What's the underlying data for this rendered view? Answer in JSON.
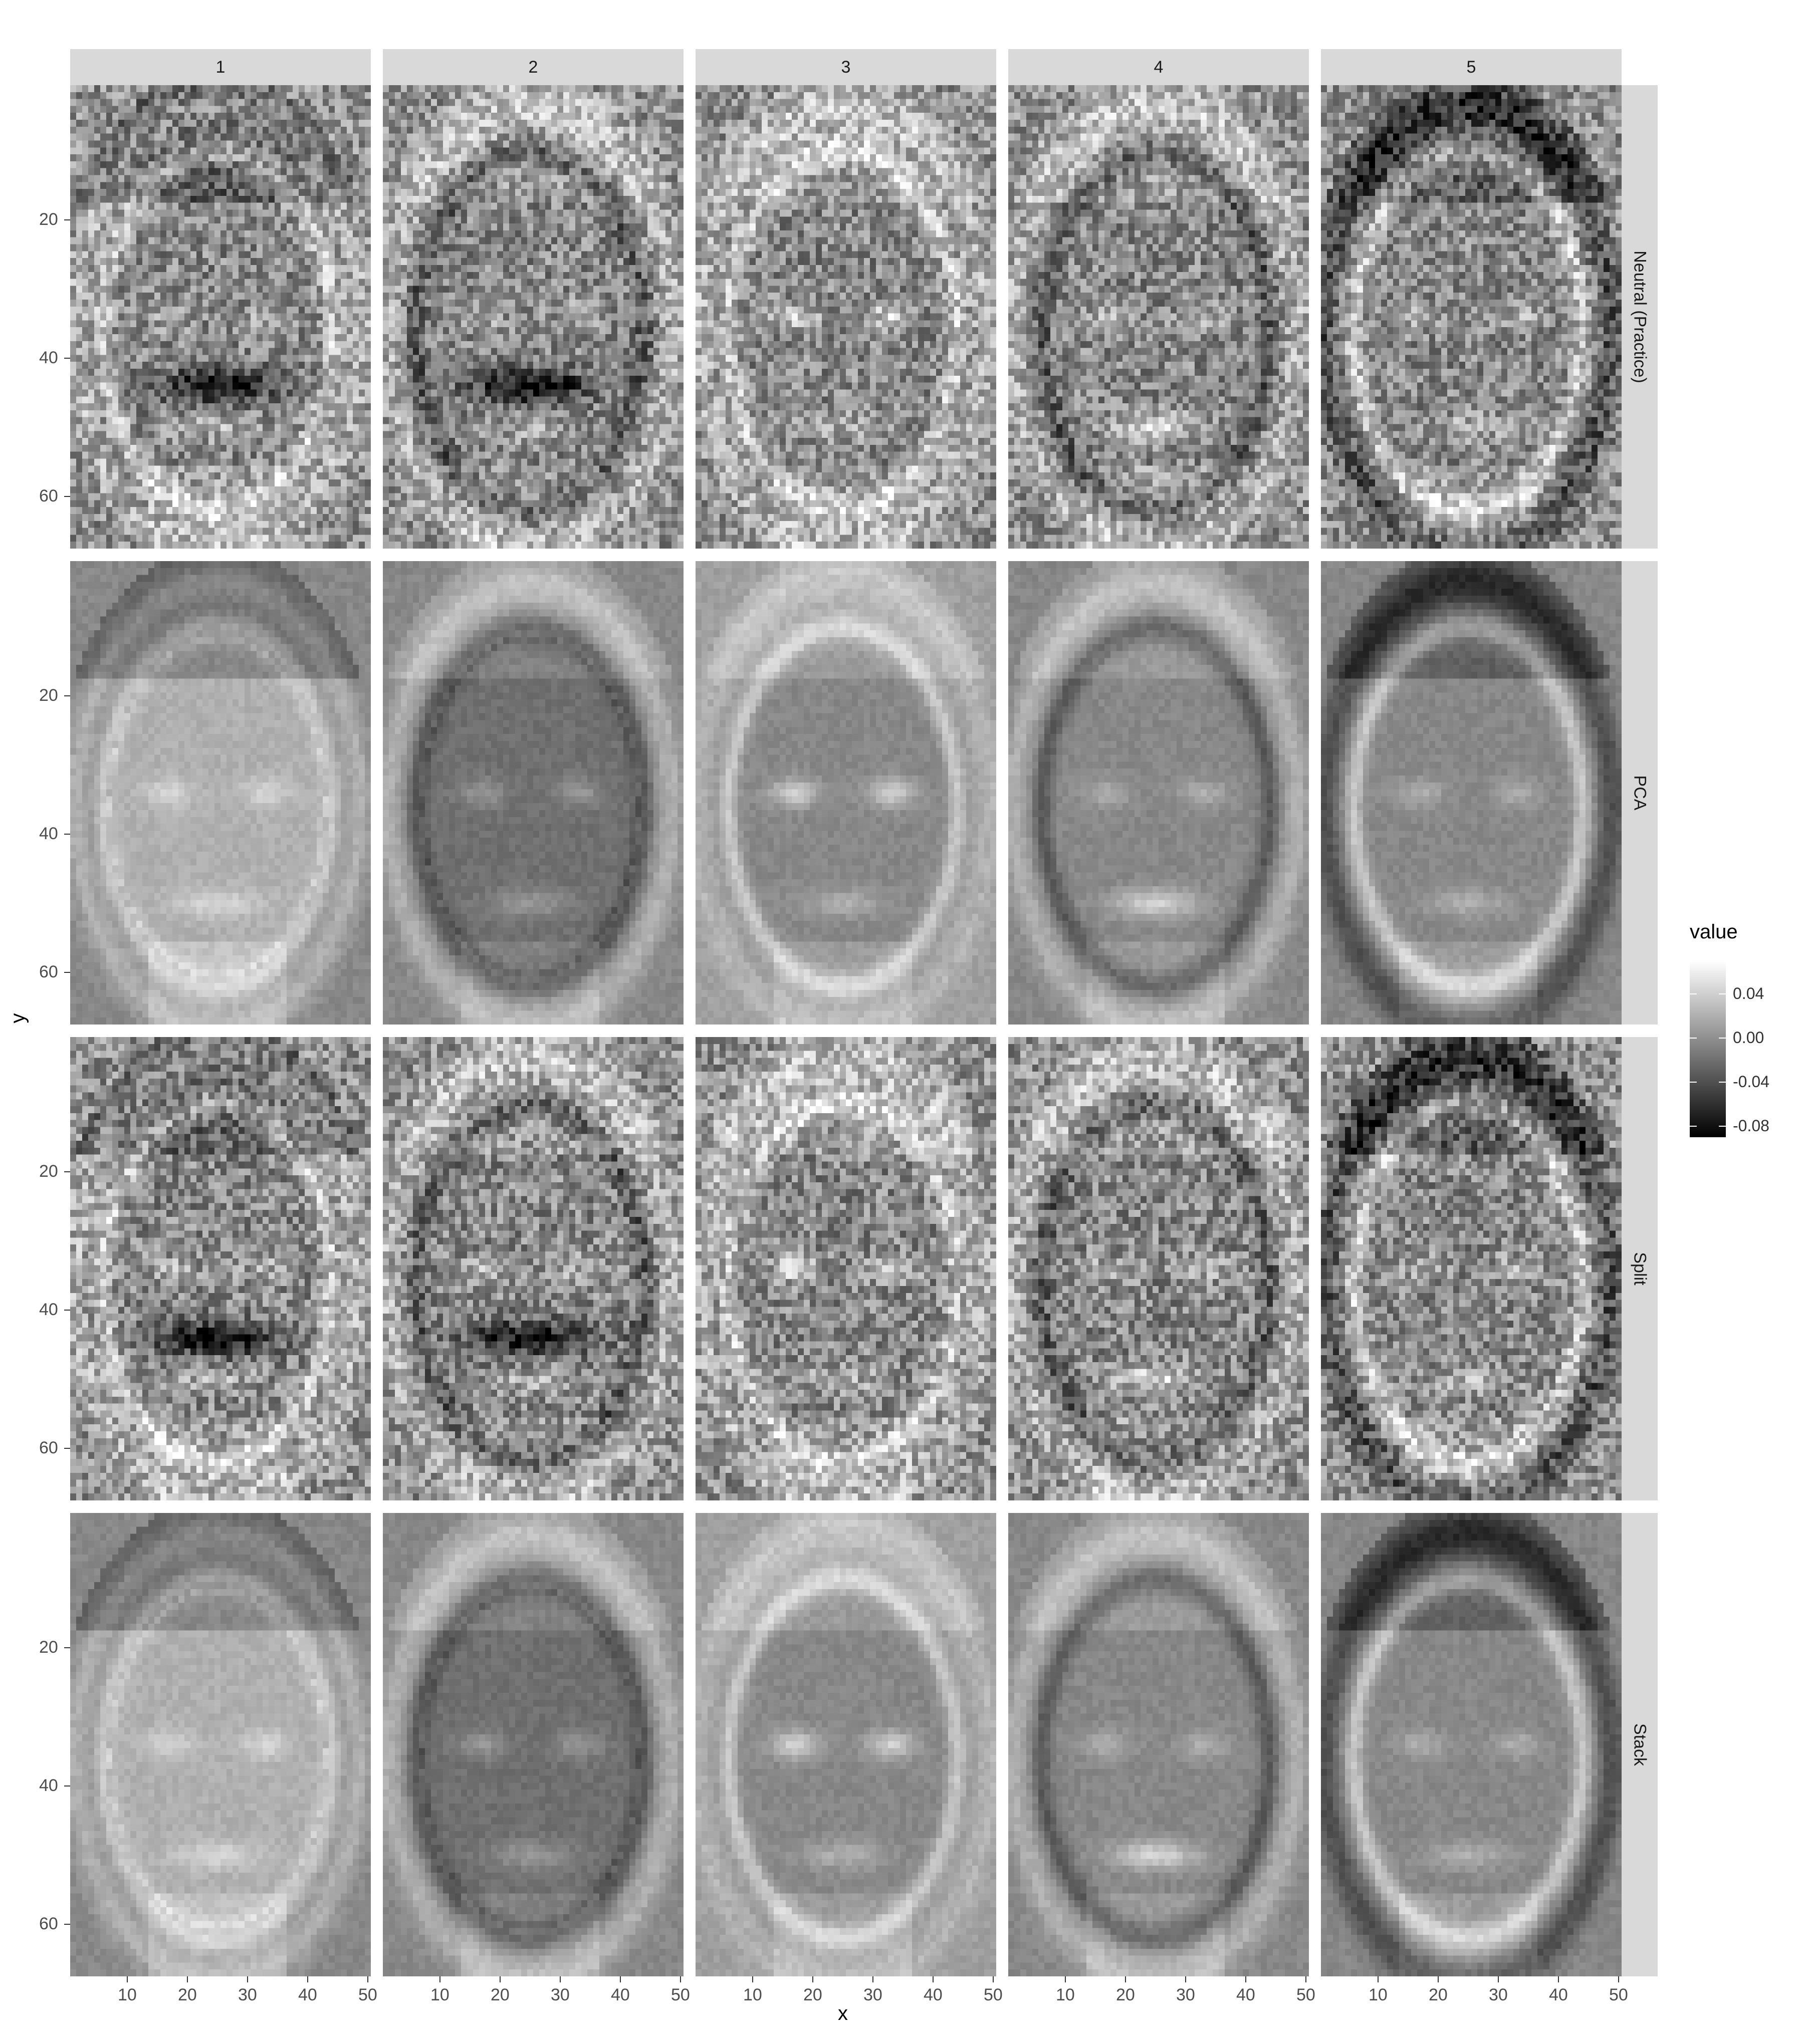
{
  "chart_data": {
    "type": "heatmap",
    "title": "",
    "xlabel": "x",
    "ylabel": "y",
    "column_facets": [
      "1",
      "2",
      "3",
      "4",
      "5"
    ],
    "row_facets": [
      "Neutral (Practice)",
      "PCA",
      "Split",
      "Stack"
    ],
    "xlim": [
      1,
      50
    ],
    "ylim": [
      67,
      1
    ],
    "y_reversed": true,
    "x_ticks": [
      "10",
      "20",
      "30",
      "40",
      "50"
    ],
    "y_ticks": [
      "20",
      "40",
      "60"
    ],
    "grid": false,
    "legend": {
      "title": "value",
      "position": "right",
      "colorscale": [
        "#000000",
        "#ffffff"
      ],
      "range": [
        -0.09,
        0.07
      ],
      "ticks": [
        "0.04",
        "0.00",
        "-0.04",
        "-0.08"
      ]
    },
    "cells": "grayscale component images (50 x 67 pixels) rendered as face-like patterns per facet"
  }
}
